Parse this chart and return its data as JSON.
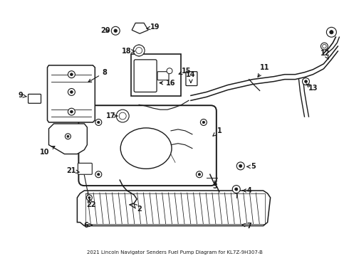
{
  "title": "2021 Lincoln Navigator Senders Fuel Pump Diagram for KL7Z-9H307-B",
  "bg_color": "#ffffff",
  "line_color": "#1a1a1a",
  "figsize": [
    4.9,
    3.6
  ],
  "dpi": 100,
  "xlim": [
    0,
    490
  ],
  "ylim": [
    0,
    360
  ]
}
